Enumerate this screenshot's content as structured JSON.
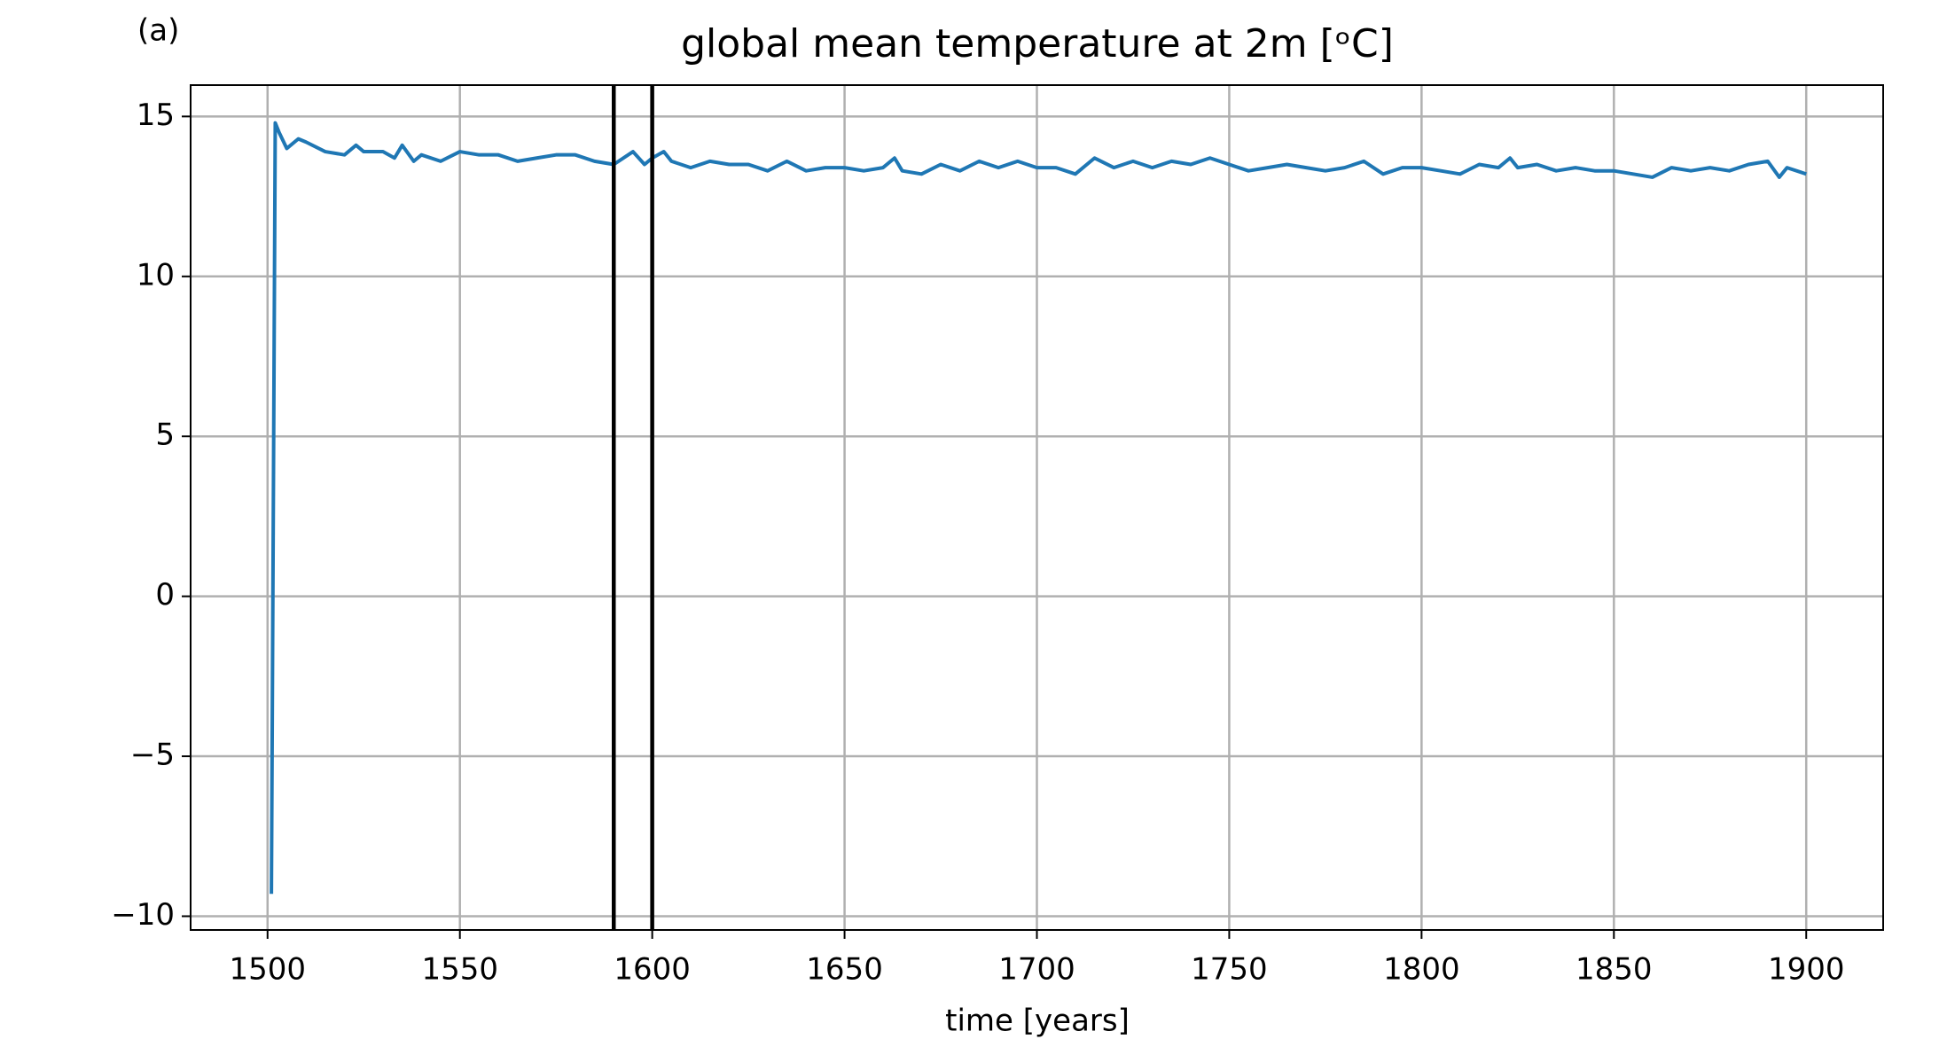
{
  "chart_data": {
    "type": "line",
    "panel_label": "(a)",
    "title": "global mean temperature at 2m [ᵒC]",
    "x_label": "time [years]",
    "x": [
      1501,
      1502,
      1503,
      1505,
      1508,
      1510,
      1515,
      1520,
      1523,
      1525,
      1530,
      1533,
      1535,
      1538,
      1540,
      1545,
      1550,
      1555,
      1560,
      1565,
      1570,
      1575,
      1580,
      1585,
      1590,
      1595,
      1598,
      1600,
      1603,
      1605,
      1610,
      1615,
      1620,
      1625,
      1630,
      1635,
      1640,
      1645,
      1650,
      1655,
      1660,
      1663,
      1665,
      1670,
      1675,
      1680,
      1685,
      1690,
      1695,
      1700,
      1705,
      1710,
      1715,
      1720,
      1725,
      1730,
      1735,
      1740,
      1745,
      1750,
      1755,
      1760,
      1765,
      1770,
      1775,
      1780,
      1785,
      1790,
      1795,
      1800,
      1805,
      1810,
      1815,
      1820,
      1823,
      1825,
      1830,
      1835,
      1840,
      1845,
      1850,
      1855,
      1860,
      1865,
      1870,
      1875,
      1880,
      1885,
      1890,
      1893,
      1895,
      1900
    ],
    "series": [
      {
        "color": "#1f77b4",
        "values": [
          -9.3,
          14.8,
          14.5,
          14.0,
          14.3,
          14.2,
          13.9,
          13.8,
          14.1,
          13.9,
          13.9,
          13.7,
          14.1,
          13.6,
          13.8,
          13.6,
          13.9,
          13.8,
          13.8,
          13.6,
          13.7,
          13.8,
          13.8,
          13.6,
          13.5,
          13.9,
          13.5,
          13.7,
          13.9,
          13.6,
          13.4,
          13.6,
          13.5,
          13.5,
          13.3,
          13.6,
          13.3,
          13.4,
          13.4,
          13.3,
          13.4,
          13.7,
          13.3,
          13.2,
          13.5,
          13.3,
          13.6,
          13.4,
          13.6,
          13.4,
          13.4,
          13.2,
          13.7,
          13.4,
          13.6,
          13.4,
          13.6,
          13.5,
          13.7,
          13.5,
          13.3,
          13.4,
          13.5,
          13.4,
          13.3,
          13.4,
          13.6,
          13.2,
          13.4,
          13.4,
          13.3,
          13.2,
          13.5,
          13.4,
          13.7,
          13.4,
          13.5,
          13.3,
          13.4,
          13.3,
          13.3,
          13.2,
          13.1,
          13.4,
          13.3,
          13.4,
          13.3,
          13.5,
          13.6,
          13.1,
          13.4,
          13.2
        ]
      }
    ],
    "vlines": [
      1590,
      1600
    ],
    "vline_color": "#000000",
    "xlim": [
      1480,
      1920
    ],
    "ylim": [
      -10.43,
      15.98
    ],
    "xticks": [
      1500,
      1550,
      1600,
      1650,
      1700,
      1750,
      1800,
      1850,
      1900
    ],
    "yticks": [
      {
        "value": -10,
        "label": "−10"
      },
      {
        "value": -5,
        "label": "−5"
      },
      0,
      5,
      10,
      15
    ],
    "grid": true
  }
}
